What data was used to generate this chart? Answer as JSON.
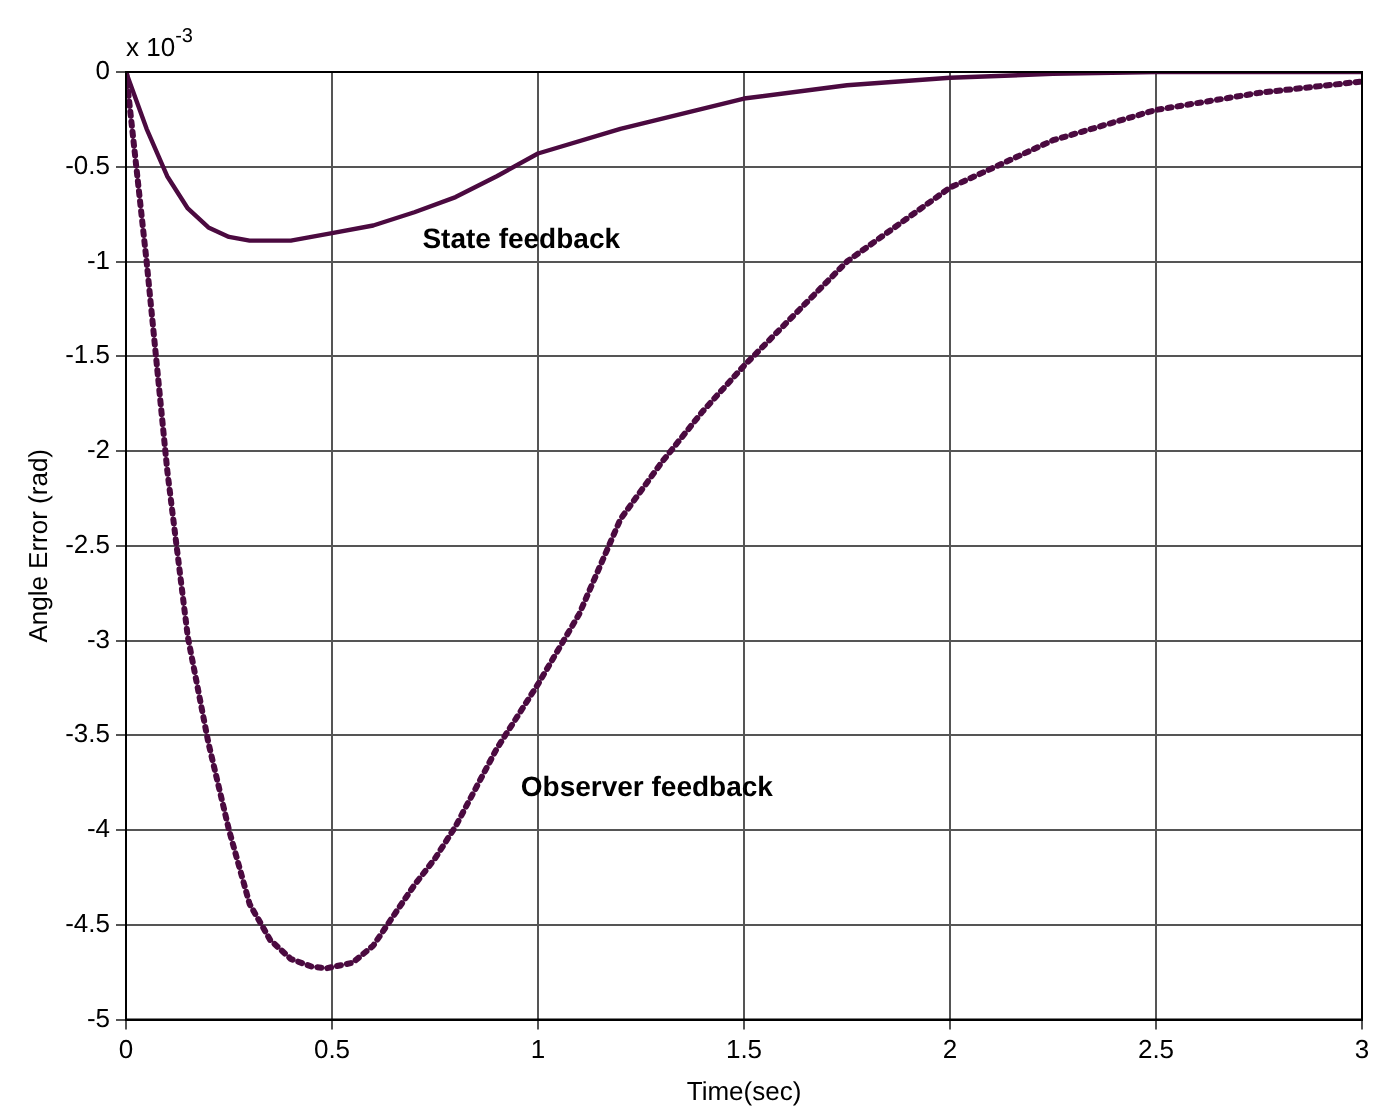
{
  "chart_data": {
    "type": "line",
    "xlabel": "Time(sec)",
    "ylabel": "Angle Error (rad)",
    "xlim": [
      0,
      3
    ],
    "xticks": [
      0,
      0.5,
      1,
      1.5,
      2,
      2.5,
      3
    ],
    "ylim": [
      -5,
      0
    ],
    "yticks": [
      -5,
      -4.5,
      -4,
      -3.5,
      -3,
      -2.5,
      -2,
      -1.5,
      -1,
      -0.5,
      0
    ],
    "grid": true,
    "legend": false,
    "annotations": [
      "x 10$^{-3}$"
    ],
    "series": [
      {
        "name": "State feedback",
        "color": "#4b0a40",
        "line_style": "solid",
        "x": [
          0,
          0.05,
          0.1,
          0.15,
          0.2,
          0.25,
          0.3,
          0.35,
          0.4,
          0.45,
          0.5,
          0.6,
          0.7,
          0.8,
          0.9,
          1.0,
          1.2,
          1.5,
          1.75,
          2.0,
          2.25,
          2.5,
          3.0
        ],
        "values": [
          0,
          -0.3,
          -0.55,
          -0.72,
          -0.82,
          -0.87,
          -0.89,
          -0.89,
          -0.89,
          -0.87,
          -0.85,
          -0.81,
          -0.74,
          -0.66,
          -0.55,
          -0.43,
          -0.3,
          -0.14,
          -0.07,
          -0.03,
          -0.01,
          0,
          0
        ]
      },
      {
        "name": "Observer feedback",
        "color": "#4b0a40",
        "line_style": "dotted",
        "x": [
          0,
          0.05,
          0.1,
          0.15,
          0.2,
          0.25,
          0.3,
          0.35,
          0.4,
          0.45,
          0.485,
          0.55,
          0.6,
          0.7,
          0.75,
          0.8,
          0.9,
          1.0,
          1.1,
          1.2,
          1.3,
          1.4,
          1.5,
          1.75,
          2.0,
          2.25,
          2.5,
          2.75,
          3.0
        ],
        "values": [
          0,
          -1.0,
          -2.1,
          -2.98,
          -3.54,
          -4.0,
          -4.39,
          -4.58,
          -4.68,
          -4.72,
          -4.73,
          -4.7,
          -4.61,
          -4.29,
          -4.15,
          -3.98,
          -3.57,
          -3.23,
          -2.86,
          -2.36,
          -2.06,
          -1.79,
          -1.55,
          -1.0,
          -0.61,
          -0.36,
          -0.2,
          -0.11,
          -0.05
        ]
      }
    ]
  }
}
